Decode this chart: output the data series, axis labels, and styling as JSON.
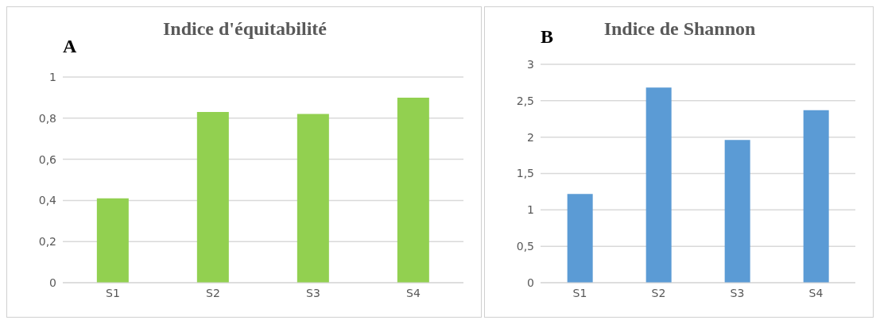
{
  "chart_data": [
    {
      "type": "bar",
      "title": "Indice d'équitabilité",
      "annotations": [
        "A"
      ],
      "categories": [
        "S1",
        "S2",
        "S3",
        "S4"
      ],
      "values": [
        0.41,
        0.83,
        0.82,
        0.9
      ],
      "color": "#92d050",
      "ylim": [
        0,
        1
      ],
      "yticks": [
        0,
        {
          "value": 0.2,
          "label": "0,2"
        },
        {
          "value": 0.4,
          "label": "0,4"
        },
        {
          "value": 0.6,
          "label": "0,6"
        },
        {
          "value": 0.8,
          "label": "0,8"
        },
        1
      ],
      "grid": "y"
    },
    {
      "type": "bar",
      "title": "Indice de Shannon",
      "annotations": [
        "B"
      ],
      "categories": [
        "S1",
        "S2",
        "S3",
        "S4"
      ],
      "values": [
        1.22,
        2.68,
        1.96,
        2.37
      ],
      "color": "#5b9bd5",
      "ylim": [
        0,
        3
      ],
      "yticks": [
        0,
        {
          "value": 0.5,
          "label": "0,5"
        },
        1,
        {
          "value": 1.5,
          "label": "1,5"
        },
        2,
        {
          "value": 2.5,
          "label": "2,5"
        },
        3
      ],
      "grid": "y"
    }
  ]
}
